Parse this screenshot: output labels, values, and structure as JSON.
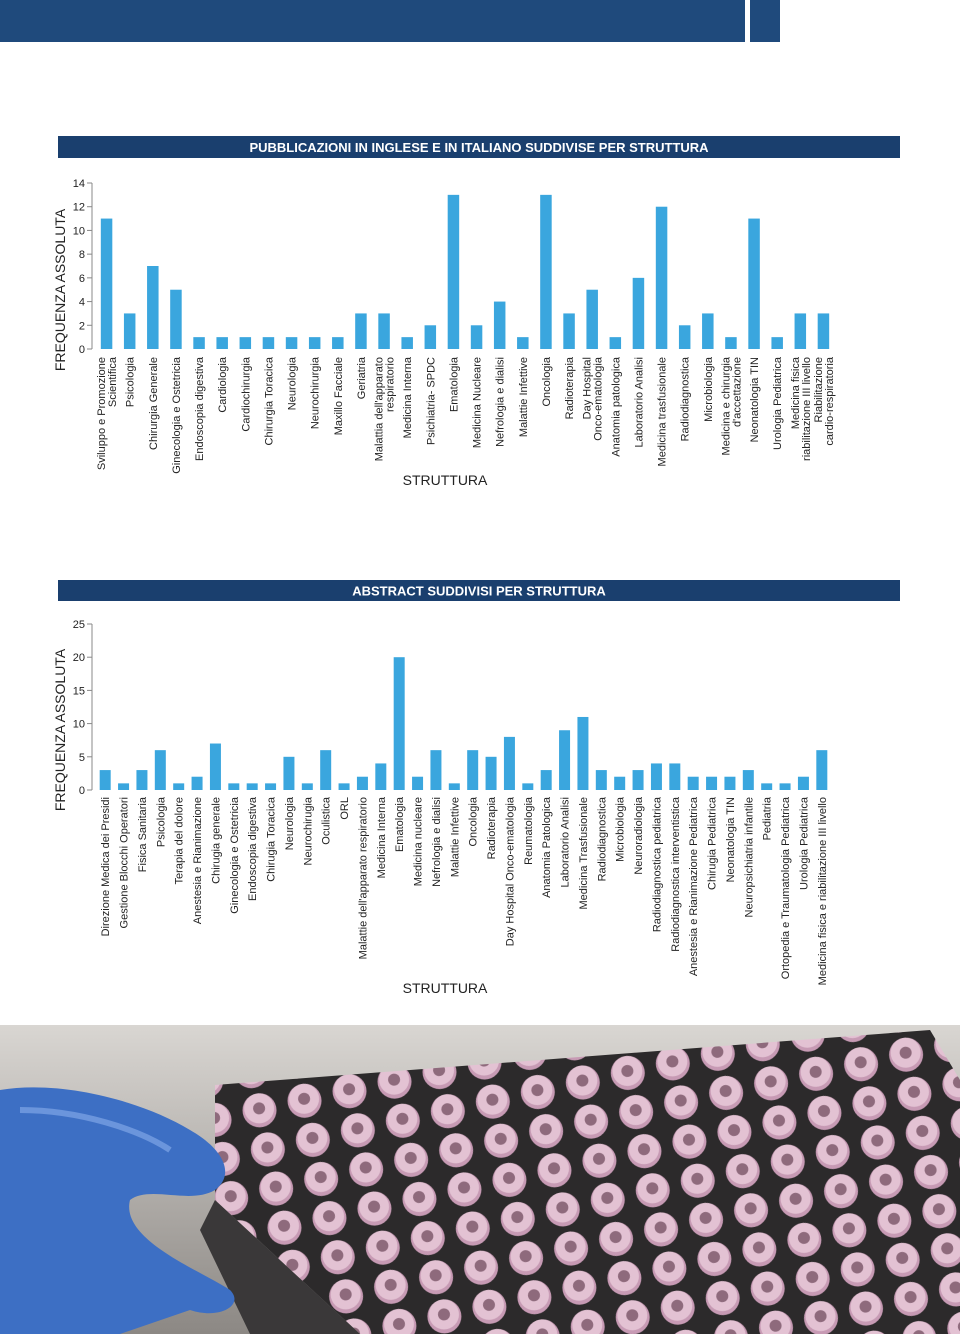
{
  "chart_data": [
    {
      "type": "bar",
      "title": "PUBBLICAZIONI IN INGLESE E IN ITALIANO SUDDIVISE PER STRUTTURA",
      "x_label": "STRUTTURA",
      "y_label": "FREQUENZA ASSOLUTA",
      "color": "#3aa6de",
      "categories": [
        "Sviluppo e Promozione\nScientifica",
        "Psicologia",
        "Chirurgia Generale",
        "Ginecologia e Ostetricia",
        "Endoscopia digestiva",
        "Cardiologia",
        "Cardiochirurgia",
        "Chirurgia Toracica",
        "Neurologia",
        "Neurochirurgia",
        "Maxillo Facciale",
        "Geriatria",
        "Malattia dell'apparato\nrespiratorio",
        "Medicina Interna",
        "Psichiatria- SPDC",
        "Ematologia",
        "Medicina Nucleare",
        "Nefrologia e dialisi",
        "Malattie Infettive",
        "Oncologia",
        "Radioterapia",
        "Day Hospital\nOnco-ematologia",
        "Anatomia patologica",
        "Laboratorio Analisi",
        "Medicina trasfusionale",
        "Radiodiagnostica",
        "Microbiologia",
        "Medicina e chirurgia\nd'accettazione",
        "Neonatologia TIN",
        "Urologia Pediatrica",
        "Medicina fisica\nriabilitazione III livello",
        "Riabilitazione\ncardio-respiratoria"
      ],
      "values": [
        11,
        3,
        7,
        5,
        1,
        1,
        1,
        1,
        1,
        1,
        1,
        3,
        3,
        1,
        2,
        13,
        2,
        4,
        1,
        13,
        3,
        5,
        1,
        6,
        12,
        2,
        3,
        1,
        11,
        1,
        3,
        3
      ],
      "ylim": [
        0,
        14
      ],
      "yticks": [
        0,
        2,
        4,
        6,
        8,
        10,
        12,
        14
      ]
    },
    {
      "type": "bar",
      "title": "ABSTRACT SUDDIVISI PER STRUTTURA",
      "x_label": "STRUTTURA",
      "y_label": "FREQUENZA ASSOLUTA",
      "color": "#3aa6de",
      "categories": [
        "Direzione Medica dei Presidi",
        "Gestione Blocchi Operatori",
        "Fisica Sanitaria",
        "Psicologia",
        "Terapia del dolore",
        "Anestesia e Rianimazione",
        "Chirugia generale",
        "Ginecologia e Ostetricia",
        "Endoscopia digestiva",
        "Chirugia Toracica",
        "Neurologia",
        "Neurochirugia",
        "Oculistica",
        "ORL",
        "Malattie dell'apparato respiratorio",
        "Medicina Interna",
        "Ematologia",
        "Medicina nucleare",
        "Nefrologia e dialisi",
        "Malattie Infettive",
        "Oncologia",
        "Radioterapia",
        "Day Hospital Onco-ematologia",
        "Reumatologia",
        "Anatomia Patologica",
        "Laboratorio Analisi",
        "Medicina Trasfusionale",
        "Radiodiagnostica",
        "Microbiologia",
        "Neuroradiologia",
        "Radiodiagnostica pediatrica",
        "Radiodiagnostica interventistica",
        "Anestesia e Rianimazione Pediatrica",
        "Chirugia Pediatrica",
        "Neonatologia TIN",
        "Neuropsichiatria infantile",
        "Pediatria",
        "Ortopedia e Traumatologia Pediatrica",
        "Urologia Pediatrica",
        "Medicina fisica e riabilitazione III livello"
      ],
      "values": [
        3,
        1,
        3,
        6,
        1,
        2,
        7,
        1,
        1,
        1,
        5,
        1,
        6,
        1,
        2,
        4,
        20,
        2,
        6,
        1,
        6,
        5,
        8,
        1,
        3,
        9,
        11,
        3,
        2,
        3,
        4,
        4,
        2,
        2,
        2,
        3,
        1,
        1,
        2,
        6
      ],
      "ylim": [
        0,
        25
      ],
      "yticks": [
        0,
        5,
        10,
        15,
        20,
        25
      ]
    }
  ]
}
